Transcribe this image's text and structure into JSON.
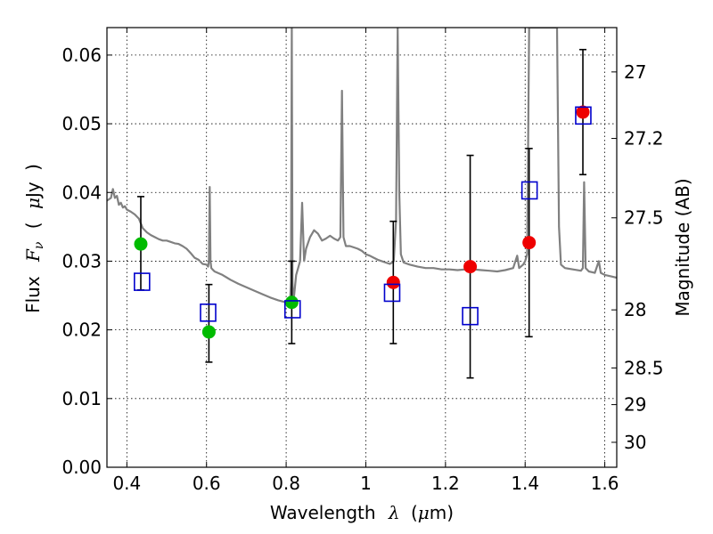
{
  "chart_data": {
    "type": "scatter",
    "xlabel": {
      "text": "Wavelength",
      "symbol": "λ",
      "unit_prefix": "(",
      "unit_mu": "μ",
      "unit_rest": "m)"
    },
    "ylabel": {
      "text": "Flux",
      "symbol_main": "F",
      "symbol_sub": "ν",
      "paren_open": "(",
      "unit_mu": "μ",
      "unit_rest": "Jy",
      "paren_close": ")"
    },
    "y2label": "Magnitude (AB)",
    "xlim": [
      0.35,
      1.63
    ],
    "ylim": [
      0.0,
      0.064
    ],
    "grid": true,
    "x_ticks": [
      0.4,
      0.6,
      0.8,
      1.0,
      1.2,
      1.4,
      1.6
    ],
    "x_tick_labels": [
      "0.4",
      "0.6",
      "0.8",
      "1",
      "1.2",
      "1.4",
      "1.6"
    ],
    "y_ticks": [
      0.0,
      0.01,
      0.02,
      0.03,
      0.04,
      0.05,
      0.06
    ],
    "y_tick_labels": [
      "0.00",
      "0.01",
      "0.02",
      "0.03",
      "0.04",
      "0.05",
      "0.06"
    ],
    "y2_ticks": [
      27,
      27.2,
      27.5,
      28,
      28.5,
      29,
      30
    ],
    "y2_tick_labels": [
      "27",
      "27.2",
      "27.5",
      "28",
      "28.5",
      "29",
      "30"
    ],
    "colors": {
      "spectrum": "#808080",
      "green_points": "#00bb00",
      "red_points": "#ee0000",
      "model_squares": "#0000cc",
      "errorbars": "#000000"
    },
    "series": [
      {
        "marker": "circle-green",
        "points": [
          {
            "x": 0.435,
            "y": 0.0325,
            "yerr_low": 0.0258,
            "yerr_high": 0.0394
          },
          {
            "x": 0.606,
            "y": 0.0197,
            "yerr_low": 0.0153,
            "yerr_high": 0.0266
          },
          {
            "x": 0.814,
            "y": 0.024,
            "yerr_low": 0.018,
            "yerr_high": 0.03
          }
        ]
      },
      {
        "marker": "circle-red",
        "points": [
          {
            "x": 1.069,
            "y": 0.0269,
            "yerr_low": 0.018,
            "yerr_high": 0.0358
          },
          {
            "x": 1.262,
            "y": 0.0292,
            "yerr_low": 0.013,
            "yerr_high": 0.0454
          },
          {
            "x": 1.41,
            "y": 0.0327,
            "yerr_low": 0.019,
            "yerr_high": 0.0464
          },
          {
            "x": 1.545,
            "y": 0.0517,
            "yerr_low": 0.0426,
            "yerr_high": 0.0608
          }
        ]
      },
      {
        "marker": "square-blue",
        "points": [
          {
            "x": 0.438,
            "y": 0.027
          },
          {
            "x": 0.604,
            "y": 0.0225
          },
          {
            "x": 0.816,
            "y": 0.023
          },
          {
            "x": 1.066,
            "y": 0.0254
          },
          {
            "x": 1.262,
            "y": 0.022
          },
          {
            "x": 1.411,
            "y": 0.0403
          },
          {
            "x": 1.546,
            "y": 0.0512
          }
        ]
      },
      {
        "type": "line",
        "points": [
          [
            0.35,
            0.0388
          ],
          [
            0.355,
            0.039
          ],
          [
            0.36,
            0.0392
          ],
          [
            0.365,
            0.0405
          ],
          [
            0.37,
            0.0392
          ],
          [
            0.375,
            0.0395
          ],
          [
            0.38,
            0.0382
          ],
          [
            0.385,
            0.0385
          ],
          [
            0.39,
            0.0378
          ],
          [
            0.395,
            0.038
          ],
          [
            0.4,
            0.0375
          ],
          [
            0.41,
            0.0372
          ],
          [
            0.42,
            0.0368
          ],
          [
            0.43,
            0.0362
          ],
          [
            0.44,
            0.0348
          ],
          [
            0.45,
            0.0342
          ],
          [
            0.46,
            0.0338
          ],
          [
            0.47,
            0.0335
          ],
          [
            0.48,
            0.0332
          ],
          [
            0.49,
            0.033
          ],
          [
            0.5,
            0.033
          ],
          [
            0.51,
            0.0328
          ],
          [
            0.52,
            0.0326
          ],
          [
            0.53,
            0.0325
          ],
          [
            0.54,
            0.0322
          ],
          [
            0.55,
            0.0318
          ],
          [
            0.56,
            0.0312
          ],
          [
            0.57,
            0.0305
          ],
          [
            0.58,
            0.0302
          ],
          [
            0.59,
            0.0296
          ],
          [
            0.6,
            0.0295
          ],
          [
            0.604,
            0.0292
          ],
          [
            0.606,
            0.03
          ],
          [
            0.608,
            0.0408
          ],
          [
            0.61,
            0.03
          ],
          [
            0.612,
            0.029
          ],
          [
            0.615,
            0.0288
          ],
          [
            0.62,
            0.0285
          ],
          [
            0.64,
            0.028
          ],
          [
            0.66,
            0.0273
          ],
          [
            0.68,
            0.0267
          ],
          [
            0.7,
            0.0262
          ],
          [
            0.72,
            0.0257
          ],
          [
            0.74,
            0.0252
          ],
          [
            0.76,
            0.0247
          ],
          [
            0.78,
            0.0243
          ],
          [
            0.8,
            0.024
          ],
          [
            0.81,
            0.0245
          ],
          [
            0.812,
            0.027
          ],
          [
            0.814,
            0.064
          ],
          [
            0.816,
            0.027
          ],
          [
            0.818,
            0.0245
          ],
          [
            0.82,
            0.025
          ],
          [
            0.825,
            0.028
          ],
          [
            0.83,
            0.029
          ],
          [
            0.835,
            0.03
          ],
          [
            0.84,
            0.0385
          ],
          [
            0.845,
            0.03
          ],
          [
            0.85,
            0.0318
          ],
          [
            0.86,
            0.0335
          ],
          [
            0.87,
            0.0345
          ],
          [
            0.88,
            0.034
          ],
          [
            0.89,
            0.033
          ],
          [
            0.9,
            0.0333
          ],
          [
            0.91,
            0.0337
          ],
          [
            0.92,
            0.0333
          ],
          [
            0.93,
            0.033
          ],
          [
            0.936,
            0.0335
          ],
          [
            0.94,
            0.0548
          ],
          [
            0.944,
            0.0335
          ],
          [
            0.95,
            0.0322
          ],
          [
            0.96,
            0.0322
          ],
          [
            0.97,
            0.032
          ],
          [
            0.98,
            0.0318
          ],
          [
            0.99,
            0.0315
          ],
          [
            1.0,
            0.031
          ],
          [
            1.01,
            0.0308
          ],
          [
            1.02,
            0.0305
          ],
          [
            1.03,
            0.0302
          ],
          [
            1.04,
            0.03
          ],
          [
            1.05,
            0.0298
          ],
          [
            1.06,
            0.0296
          ],
          [
            1.066,
            0.0298
          ],
          [
            1.07,
            0.03
          ],
          [
            1.076,
            0.036
          ],
          [
            1.08,
            0.064
          ],
          [
            1.084,
            0.04
          ],
          [
            1.088,
            0.031
          ],
          [
            1.095,
            0.0298
          ],
          [
            1.11,
            0.0295
          ],
          [
            1.13,
            0.0292
          ],
          [
            1.15,
            0.029
          ],
          [
            1.17,
            0.029
          ],
          [
            1.19,
            0.0288
          ],
          [
            1.21,
            0.0288
          ],
          [
            1.23,
            0.0287
          ],
          [
            1.25,
            0.0288
          ],
          [
            1.27,
            0.0288
          ],
          [
            1.29,
            0.0287
          ],
          [
            1.31,
            0.0286
          ],
          [
            1.33,
            0.0285
          ],
          [
            1.35,
            0.0287
          ],
          [
            1.37,
            0.029
          ],
          [
            1.38,
            0.0308
          ],
          [
            1.385,
            0.029
          ],
          [
            1.395,
            0.0295
          ],
          [
            1.4,
            0.03
          ],
          [
            1.405,
            0.031
          ],
          [
            1.41,
            0.064
          ],
          [
            1.42,
            0.064
          ],
          [
            1.43,
            0.064
          ],
          [
            1.44,
            0.064
          ],
          [
            1.45,
            0.064
          ],
          [
            1.46,
            0.064
          ],
          [
            1.47,
            0.064
          ],
          [
            1.48,
            0.064
          ],
          [
            1.485,
            0.035
          ],
          [
            1.49,
            0.0295
          ],
          [
            1.5,
            0.029
          ],
          [
            1.52,
            0.0288
          ],
          [
            1.54,
            0.0286
          ],
          [
            1.545,
            0.029
          ],
          [
            1.548,
            0.0415
          ],
          [
            1.552,
            0.029
          ],
          [
            1.56,
            0.0285
          ],
          [
            1.575,
            0.0283
          ],
          [
            1.585,
            0.03
          ],
          [
            1.59,
            0.0283
          ],
          [
            1.6,
            0.028
          ],
          [
            1.615,
            0.0278
          ],
          [
            1.63,
            0.0276
          ]
        ]
      }
    ]
  }
}
